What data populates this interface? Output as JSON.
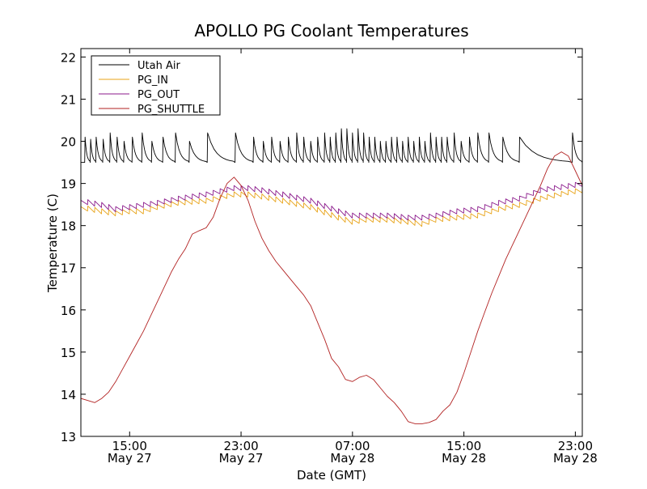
{
  "chart_data": {
    "type": "line",
    "title": "APOLLO PG Coolant Temperatures",
    "xlabel": "Date (GMT)",
    "ylabel": "Temperature (C)",
    "xlim_hours": [
      11.5,
      47.5
    ],
    "ylim": [
      13,
      22.2
    ],
    "grid": false,
    "legend_position": "top-left",
    "y_ticks": [
      13,
      14,
      15,
      16,
      17,
      18,
      19,
      20,
      21,
      22
    ],
    "x_ticks": [
      {
        "hour": 15,
        "time": "15:00",
        "date": "May 27"
      },
      {
        "hour": 23,
        "time": "23:00",
        "date": "May 27"
      },
      {
        "hour": 31,
        "time": "07:00",
        "date": "May 28"
      },
      {
        "hour": 39,
        "time": "15:00",
        "date": "May 28"
      },
      {
        "hour": 47,
        "time": "23:00",
        "date": "May 28"
      }
    ],
    "series": [
      {
        "name": "Utah Air",
        "color": "#000000",
        "style": "sawtooth",
        "base": 19.5,
        "peaks": [
          [
            11.8,
            20.1
          ],
          [
            12.2,
            20.05
          ],
          [
            12.6,
            20.1
          ],
          [
            13.1,
            20.05
          ],
          [
            13.6,
            20.2
          ],
          [
            14.1,
            20.1
          ],
          [
            14.6,
            20.0
          ],
          [
            15.2,
            20.1
          ],
          [
            15.9,
            20.2
          ],
          [
            16.6,
            20.0
          ],
          [
            17.4,
            20.1
          ],
          [
            18.3,
            20.2
          ],
          [
            19.3,
            20.0
          ],
          [
            20.6,
            20.2
          ],
          [
            22.6,
            20.2
          ],
          [
            23.9,
            20.1
          ],
          [
            24.6,
            20.0
          ],
          [
            25.2,
            20.1
          ],
          [
            25.8,
            20.0
          ],
          [
            26.4,
            20.1
          ],
          [
            27.0,
            20.2
          ],
          [
            27.5,
            20.1
          ],
          [
            28.0,
            20.0
          ],
          [
            28.5,
            20.1
          ],
          [
            29.0,
            20.2
          ],
          [
            29.4,
            20.1
          ],
          [
            29.8,
            20.2
          ],
          [
            30.2,
            20.3
          ],
          [
            30.6,
            20.3
          ],
          [
            31.0,
            20.2
          ],
          [
            31.4,
            20.3
          ],
          [
            31.8,
            20.2
          ],
          [
            32.2,
            20.1
          ],
          [
            32.6,
            20.1
          ],
          [
            33.0,
            20.0
          ],
          [
            33.4,
            20.0
          ],
          [
            33.8,
            20.1
          ],
          [
            34.2,
            20.1
          ],
          [
            34.6,
            20.0
          ],
          [
            35.0,
            20.1
          ],
          [
            35.4,
            20.0
          ],
          [
            35.8,
            20.1
          ],
          [
            36.2,
            20.0
          ],
          [
            36.6,
            20.2
          ],
          [
            37.0,
            20.1
          ],
          [
            37.4,
            20.1
          ],
          [
            37.8,
            20.1
          ],
          [
            38.3,
            20.2
          ],
          [
            38.8,
            20.0
          ],
          [
            39.4,
            20.1
          ],
          [
            40.0,
            20.2
          ],
          [
            40.8,
            20.2
          ],
          [
            41.8,
            20.1
          ],
          [
            43.0,
            20.1
          ],
          [
            46.8,
            20.2
          ]
        ]
      },
      {
        "name": "PG_IN",
        "color": "#e8a317",
        "style": "stepped",
        "points": [
          [
            11.5,
            18.45
          ],
          [
            13,
            18.35
          ],
          [
            14,
            18.3
          ],
          [
            15,
            18.35
          ],
          [
            16,
            18.35
          ],
          [
            17,
            18.45
          ],
          [
            18.5,
            18.55
          ],
          [
            20.5,
            18.6
          ],
          [
            22.5,
            18.75
          ],
          [
            23.5,
            18.75
          ],
          [
            24.5,
            18.7
          ],
          [
            26,
            18.6
          ],
          [
            28,
            18.45
          ],
          [
            30,
            18.2
          ],
          [
            31,
            18.1
          ],
          [
            32,
            18.15
          ],
          [
            33.5,
            18.15
          ],
          [
            35,
            18.1
          ],
          [
            36,
            18.05
          ],
          [
            37,
            18.15
          ],
          [
            38.5,
            18.2
          ],
          [
            40,
            18.25
          ],
          [
            41.5,
            18.4
          ],
          [
            43,
            18.5
          ],
          [
            44.5,
            18.65
          ],
          [
            46.5,
            18.8
          ],
          [
            47.5,
            18.85
          ]
        ]
      },
      {
        "name": "PG_OUT",
        "color": "#8b1a8b",
        "style": "stepped",
        "points": [
          [
            11.5,
            18.6
          ],
          [
            13,
            18.5
          ],
          [
            14,
            18.4
          ],
          [
            15,
            18.45
          ],
          [
            16,
            18.5
          ],
          [
            17,
            18.55
          ],
          [
            18.5,
            18.65
          ],
          [
            20.5,
            18.75
          ],
          [
            22.5,
            18.9
          ],
          [
            23.5,
            18.9
          ],
          [
            24.5,
            18.85
          ],
          [
            26,
            18.75
          ],
          [
            28,
            18.6
          ],
          [
            30,
            18.35
          ],
          [
            31,
            18.25
          ],
          [
            32,
            18.25
          ],
          [
            33.5,
            18.25
          ],
          [
            35,
            18.2
          ],
          [
            36,
            18.2
          ],
          [
            37,
            18.25
          ],
          [
            38.5,
            18.35
          ],
          [
            40,
            18.4
          ],
          [
            41.5,
            18.55
          ],
          [
            43,
            18.65
          ],
          [
            44.5,
            18.85
          ],
          [
            46.5,
            18.95
          ],
          [
            47.5,
            19.0
          ]
        ]
      },
      {
        "name": "PG_SHUTTLE",
        "color": "#b22222",
        "style": "smooth",
        "points": [
          [
            11.5,
            13.9
          ],
          [
            12,
            13.85
          ],
          [
            12.5,
            13.8
          ],
          [
            13,
            13.9
          ],
          [
            13.5,
            14.05
          ],
          [
            14,
            14.3
          ],
          [
            14.5,
            14.6
          ],
          [
            15,
            14.9
          ],
          [
            15.5,
            15.2
          ],
          [
            16,
            15.5
          ],
          [
            16.5,
            15.85
          ],
          [
            17,
            16.2
          ],
          [
            17.5,
            16.55
          ],
          [
            18,
            16.9
          ],
          [
            18.5,
            17.2
          ],
          [
            19,
            17.45
          ],
          [
            19.5,
            17.8
          ],
          [
            20,
            17.88
          ],
          [
            20.5,
            17.95
          ],
          [
            21,
            18.2
          ],
          [
            21.5,
            18.65
          ],
          [
            22,
            19.0
          ],
          [
            22.5,
            19.15
          ],
          [
            23,
            18.95
          ],
          [
            23.5,
            18.6
          ],
          [
            24,
            18.1
          ],
          [
            24.5,
            17.7
          ],
          [
            25,
            17.4
          ],
          [
            25.5,
            17.15
          ],
          [
            26,
            16.95
          ],
          [
            26.5,
            16.75
          ],
          [
            27,
            16.55
          ],
          [
            27.5,
            16.35
          ],
          [
            28,
            16.1
          ],
          [
            28.5,
            15.7
          ],
          [
            29,
            15.3
          ],
          [
            29.5,
            14.85
          ],
          [
            30,
            14.65
          ],
          [
            30.5,
            14.35
          ],
          [
            31,
            14.3
          ],
          [
            31.5,
            14.4
          ],
          [
            32,
            14.45
          ],
          [
            32.5,
            14.35
          ],
          [
            33,
            14.15
          ],
          [
            33.5,
            13.95
          ],
          [
            34,
            13.8
          ],
          [
            34.5,
            13.6
          ],
          [
            35,
            13.35
          ],
          [
            35.5,
            13.3
          ],
          [
            36,
            13.3
          ],
          [
            36.5,
            13.33
          ],
          [
            37,
            13.4
          ],
          [
            37.5,
            13.6
          ],
          [
            38,
            13.75
          ],
          [
            38.5,
            14.05
          ],
          [
            39,
            14.5
          ],
          [
            39.5,
            15.0
          ],
          [
            40,
            15.5
          ],
          [
            40.5,
            15.95
          ],
          [
            41,
            16.4
          ],
          [
            41.5,
            16.8
          ],
          [
            42,
            17.2
          ],
          [
            42.5,
            17.55
          ],
          [
            43,
            17.9
          ],
          [
            43.5,
            18.25
          ],
          [
            44,
            18.6
          ],
          [
            44.5,
            18.95
          ],
          [
            45,
            19.35
          ],
          [
            45.5,
            19.65
          ],
          [
            46,
            19.75
          ],
          [
            46.5,
            19.65
          ],
          [
            47,
            19.3
          ],
          [
            47.5,
            18.95
          ]
        ]
      }
    ]
  }
}
